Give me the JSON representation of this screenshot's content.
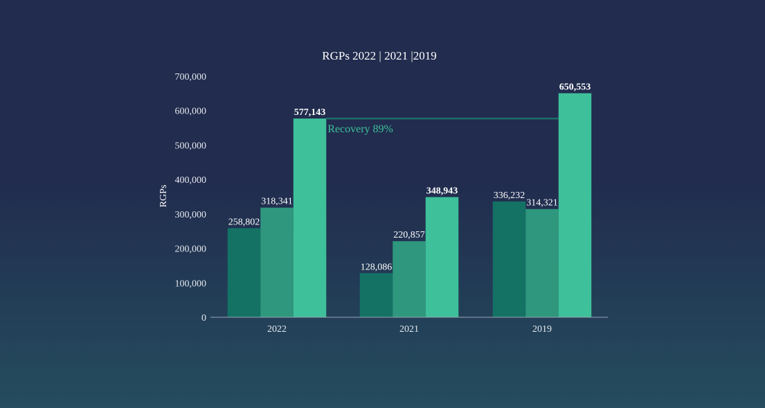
{
  "chart_data": {
    "type": "bar",
    "title": "RGPs 2022 | 2021 |2019",
    "xlabel": "",
    "ylabel": "RGPs",
    "ylim": [
      0,
      700000
    ],
    "yticks": [
      0,
      100000,
      200000,
      300000,
      400000,
      500000,
      600000,
      700000
    ],
    "ytick_labels": [
      "0",
      "100,000",
      "200,000",
      "300,000",
      "400,000",
      "500,000",
      "600,000",
      "700,000"
    ],
    "categories": [
      "2022",
      "2021",
      "2019"
    ],
    "series": [
      {
        "color": "#147265",
        "values": [
          258802,
          128086,
          336232
        ],
        "labels": [
          "258,802",
          "128,086",
          "336,232"
        ],
        "bold_labels": false
      },
      {
        "color": "#2e977e",
        "values": [
          318341,
          220857,
          314321
        ],
        "labels": [
          "318,341",
          "220,857",
          "314,321"
        ],
        "bold_labels": false
      },
      {
        "color": "#3ec09a",
        "values": [
          577143,
          348943,
          650553
        ],
        "labels": [
          "577,143",
          "348,943",
          "650,553"
        ],
        "bold_labels": true
      }
    ],
    "grid": false,
    "legend": "none",
    "annotation": {
      "text": "Recovery 89%",
      "line_value": 577143,
      "from_category": "2022",
      "to_category": "2019",
      "color": "#3ec09a",
      "line_color": "#1e6e6a"
    },
    "axis_color": "#9aa3b2"
  }
}
